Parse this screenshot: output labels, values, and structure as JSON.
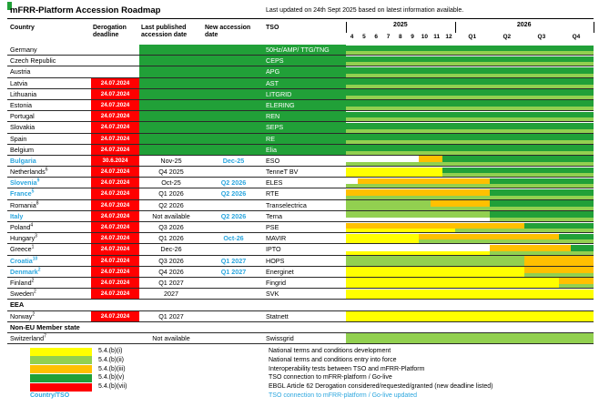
{
  "header": {
    "title": "mFRR-Platform Accession Roadmap",
    "updated": "Last updated on 24th Sept 2025 based on latest information available."
  },
  "columns": {
    "country": "Country",
    "derogation": "Derogation deadline",
    "last_published": "Last published accession date",
    "new_date": "New accession date",
    "tso": "TSO"
  },
  "colors": {
    "green": "#21A038",
    "lightgreen": "#92D050",
    "yellow": "#FFFF00",
    "orange": "#FFC000",
    "red": "#FF0000",
    "blue": "#2BA6DE",
    "white": "#FFFFFF"
  },
  "chart_data": {
    "type": "bar",
    "title": "mFRR-Platform Accession Roadmap",
    "x_axis": {
      "year_2025_months": [
        "4",
        "5",
        "6",
        "7",
        "8",
        "9",
        "10",
        "11",
        "12"
      ],
      "year_2026_quarters": [
        "Q1",
        "Q2",
        "Q3",
        "Q4"
      ],
      "labels": [
        "2025",
        "2026"
      ],
      "range_months_from_apr_2025": [
        0,
        21
      ]
    },
    "legend_position": "bottom",
    "rows": [
      {
        "type": "country",
        "name": "Germany",
        "sup": "",
        "blue": false,
        "deadline": "",
        "deadline_red": false,
        "published": "",
        "new_date": "",
        "new_blue": false,
        "tso": "50Hz/AMP/ TTG/TNG",
        "live": true,
        "upper": [
          [
            "green",
            0,
            21
          ]
        ],
        "lower": [
          [
            "lightgreen",
            0,
            21
          ]
        ]
      },
      {
        "type": "country",
        "name": "Czech Republic",
        "sup": "",
        "blue": false,
        "deadline": "",
        "deadline_red": false,
        "published": "",
        "new_date": "",
        "new_blue": false,
        "tso": "CEPS",
        "live": true,
        "upper": [
          [
            "green",
            0,
            21
          ]
        ],
        "lower": [
          [
            "lightgreen",
            0,
            21
          ]
        ]
      },
      {
        "type": "country",
        "name": "Austria",
        "sup": "",
        "blue": false,
        "deadline": "",
        "deadline_red": false,
        "published": "",
        "new_date": "",
        "new_blue": false,
        "tso": "APG",
        "live": true,
        "upper": [
          [
            "green",
            0,
            21
          ]
        ],
        "lower": [
          [
            "lightgreen",
            0,
            21
          ]
        ]
      },
      {
        "type": "country",
        "name": "Latvia",
        "sup": "",
        "blue": false,
        "deadline": "24.07.2024",
        "deadline_red": true,
        "published": "",
        "new_date": "",
        "new_blue": false,
        "tso": "AST",
        "live": true,
        "upper": [
          [
            "green",
            0,
            21
          ]
        ],
        "lower": [
          [
            "lightgreen",
            0,
            21
          ]
        ]
      },
      {
        "type": "country",
        "name": "Lithuania",
        "sup": "",
        "blue": false,
        "deadline": "24.07.2024",
        "deadline_red": true,
        "published": "",
        "new_date": "",
        "new_blue": false,
        "tso": "LITGRID",
        "live": true,
        "upper": [
          [
            "green",
            0,
            21
          ]
        ],
        "lower": [
          [
            "lightgreen",
            0,
            21
          ]
        ]
      },
      {
        "type": "country",
        "name": "Estonia",
        "sup": "",
        "blue": false,
        "deadline": "24.07.2024",
        "deadline_red": true,
        "published": "",
        "new_date": "",
        "new_blue": false,
        "tso": "ELERING",
        "live": true,
        "upper": [
          [
            "green",
            0,
            21
          ]
        ],
        "lower": [
          [
            "lightgreen",
            0,
            21
          ]
        ]
      },
      {
        "type": "country",
        "name": "Portugal",
        "sup": "",
        "blue": false,
        "deadline": "24.07.2024",
        "deadline_red": true,
        "published": "",
        "new_date": "",
        "new_blue": false,
        "tso": "REN",
        "live": true,
        "upper": [
          [
            "green",
            0,
            21
          ]
        ],
        "lower": [
          [
            "lightgreen",
            0,
            21
          ]
        ]
      },
      {
        "type": "country",
        "name": "Slovakia",
        "sup": "",
        "blue": false,
        "deadline": "24.07.2024",
        "deadline_red": true,
        "published": "",
        "new_date": "",
        "new_blue": false,
        "tso": "SEPS",
        "live": true,
        "upper": [
          [
            "green",
            0,
            21
          ]
        ],
        "lower": [
          [
            "lightgreen",
            0,
            21
          ]
        ]
      },
      {
        "type": "country",
        "name": "Spain",
        "sup": "",
        "blue": false,
        "deadline": "24.07.2024",
        "deadline_red": true,
        "published": "",
        "new_date": "",
        "new_blue": false,
        "tso": "RE",
        "live": true,
        "upper": [
          [
            "green",
            0,
            21
          ]
        ],
        "lower": [
          [
            "lightgreen",
            0,
            21
          ]
        ]
      },
      {
        "type": "country",
        "name": "Belgium",
        "sup": "",
        "blue": false,
        "deadline": "24.07.2024",
        "deadline_red": true,
        "published": "",
        "new_date": "",
        "new_blue": false,
        "tso": "Elia",
        "live": true,
        "upper": [
          [
            "green",
            0,
            21
          ]
        ],
        "lower": [
          [
            "lightgreen",
            0,
            21
          ]
        ]
      },
      {
        "type": "country",
        "name": "Bulgaria",
        "sup": "",
        "blue": true,
        "deadline": "30.6.2024",
        "deadline_red": true,
        "published": "Nov-25",
        "new_date": "Dec-25",
        "new_blue": true,
        "tso": "ESO",
        "live": false,
        "upper": [
          [
            "white",
            0,
            6
          ],
          [
            "orange",
            6,
            8
          ],
          [
            "green",
            8,
            21
          ]
        ],
        "lower": [
          [
            "lightgreen",
            0,
            21
          ]
        ]
      },
      {
        "type": "country",
        "name": "Netherlands",
        "sup": "6",
        "blue": false,
        "deadline": "24.07.2024",
        "deadline_red": true,
        "published": "Q4 2025",
        "new_date": "",
        "new_blue": false,
        "tso": "TenneT BV",
        "live": false,
        "upper": [
          [
            "yellow",
            0,
            8
          ],
          [
            "green",
            8,
            21
          ]
        ],
        "lower": [
          [
            "yellow",
            0,
            8
          ],
          [
            "lightgreen",
            8,
            21
          ]
        ]
      },
      {
        "type": "country",
        "name": "Slovenia",
        "sup": "9",
        "blue": true,
        "deadline": "24.07.2024",
        "deadline_red": true,
        "published": "Oct-25",
        "new_date": "Q2 2026",
        "new_blue": true,
        "tso": "ELES",
        "live": false,
        "upper": [
          [
            "white",
            0,
            1
          ],
          [
            "orange",
            1,
            12
          ],
          [
            "green",
            12,
            21
          ]
        ],
        "lower": [
          [
            "lightgreen",
            0,
            21
          ]
        ]
      },
      {
        "type": "country",
        "name": "France",
        "sup": "5",
        "blue": true,
        "deadline": "24.07.2024",
        "deadline_red": true,
        "published": "Q1 2026",
        "new_date": "Q2 2026",
        "new_blue": true,
        "tso": "RTE",
        "live": false,
        "upper": [
          [
            "orange",
            0,
            12
          ],
          [
            "green",
            12,
            21
          ]
        ],
        "lower": [
          [
            "lightgreen",
            0,
            21
          ]
        ]
      },
      {
        "type": "country",
        "name": "Romania",
        "sup": "8",
        "blue": false,
        "deadline": "24.07.2024",
        "deadline_red": true,
        "published": "Q2 2026",
        "new_date": "",
        "new_blue": false,
        "tso": "Transelectrica",
        "live": false,
        "upper": [
          [
            "lightgreen",
            0,
            7
          ],
          [
            "orange",
            7,
            12
          ],
          [
            "green",
            12,
            21
          ]
        ],
        "lower": [
          [
            "lightgreen",
            0,
            21
          ]
        ]
      },
      {
        "type": "country",
        "name": "Italy",
        "sup": "",
        "blue": true,
        "deadline": "24.07.2024",
        "deadline_red": true,
        "published": "Not available",
        "new_date": "Q2 2026",
        "new_blue": true,
        "tso": "Terna",
        "live": false,
        "upper": [
          [
            "lightgreen",
            0,
            12
          ],
          [
            "green",
            12,
            21
          ]
        ],
        "lower": [
          [
            "white",
            0,
            12
          ],
          [
            "lightgreen",
            12,
            21
          ]
        ]
      },
      {
        "type": "country",
        "name": "Poland",
        "sup": "4",
        "blue": false,
        "deadline": "24.07.2024",
        "deadline_red": true,
        "published": "Q3 2026",
        "new_date": "",
        "new_blue": false,
        "tso": "PSE",
        "live": false,
        "upper": [
          [
            "orange",
            0,
            15
          ],
          [
            "green",
            15,
            21
          ]
        ],
        "lower": [
          [
            "yellow",
            0,
            9
          ],
          [
            "lightgreen",
            9,
            21
          ]
        ]
      },
      {
        "type": "country",
        "name": "Hungary",
        "sup": "3",
        "blue": false,
        "deadline": "24.07.2024",
        "deadline_red": true,
        "published": "Q1 2026",
        "new_date": "Oct-26",
        "new_blue": true,
        "tso": "MAVIR",
        "live": false,
        "upper": [
          [
            "yellow",
            0,
            6
          ],
          [
            "orange",
            6,
            18
          ],
          [
            "green",
            18,
            21
          ]
        ],
        "lower": [
          [
            "yellow",
            0,
            6
          ],
          [
            "lightgreen",
            6,
            21
          ]
        ]
      },
      {
        "type": "country",
        "name": "Greece",
        "sup": "1",
        "blue": false,
        "deadline": "24.07.2024",
        "deadline_red": true,
        "published": "Dec-26",
        "new_date": "",
        "new_blue": false,
        "tso": "IPTO",
        "live": false,
        "upper": [
          [
            "white",
            0,
            12
          ],
          [
            "orange",
            12,
            19
          ],
          [
            "green",
            19,
            21
          ]
        ],
        "lower": [
          [
            "yellow",
            0,
            12
          ],
          [
            "lightgreen",
            12,
            21
          ]
        ]
      },
      {
        "type": "country",
        "name": "Croatia",
        "sup": "10",
        "blue": true,
        "deadline": "24.07.2024",
        "deadline_red": true,
        "published": "Q3 2026",
        "new_date": "Q1 2027",
        "new_blue": true,
        "tso": "HOPS",
        "live": false,
        "upper": [
          [
            "lightgreen",
            0,
            15
          ],
          [
            "orange",
            15,
            21
          ]
        ],
        "lower": [
          [
            "lightgreen",
            0,
            15
          ],
          [
            "orange",
            15,
            21
          ]
        ]
      },
      {
        "type": "country",
        "name": "Denmark",
        "sup": "2",
        "blue": true,
        "deadline": "24.07.2024",
        "deadline_red": true,
        "published": "Q4 2026",
        "new_date": "Q1 2027",
        "new_blue": true,
        "tso": "Energinet",
        "live": false,
        "upper": [
          [
            "yellow",
            0,
            15
          ],
          [
            "orange",
            15,
            21
          ]
        ],
        "lower": [
          [
            "yellow",
            0,
            15
          ],
          [
            "lightgreen",
            15,
            21
          ]
        ]
      },
      {
        "type": "country",
        "name": "Finland",
        "sup": "2",
        "blue": false,
        "deadline": "24.07.2024",
        "deadline_red": true,
        "published": "Q1 2027",
        "new_date": "",
        "new_blue": false,
        "tso": "Fingrid",
        "live": false,
        "upper": [
          [
            "yellow",
            0,
            18
          ],
          [
            "orange",
            18,
            21
          ]
        ],
        "lower": [
          [
            "yellow",
            0,
            18
          ],
          [
            "lightgreen",
            18,
            21
          ]
        ]
      },
      {
        "type": "country",
        "name": "Sweden",
        "sup": "2",
        "blue": false,
        "deadline": "24.07.2024",
        "deadline_red": true,
        "published": "2027",
        "new_date": "",
        "new_blue": false,
        "tso": "SVK",
        "live": false,
        "upper": [
          [
            "yellow",
            0,
            21
          ]
        ],
        "lower": [
          [
            "yellow",
            0,
            21
          ]
        ]
      },
      {
        "type": "section",
        "label": "EEA"
      },
      {
        "type": "country",
        "name": "Norway",
        "sup": "2",
        "blue": false,
        "deadline": "24.07.2024",
        "deadline_red": true,
        "published": "Q1 2027",
        "new_date": "",
        "new_blue": false,
        "tso": "Statnett",
        "live": false,
        "upper": [
          [
            "yellow",
            0,
            21
          ]
        ],
        "lower": [
          [
            "yellow",
            0,
            21
          ]
        ]
      },
      {
        "type": "section",
        "label": "Non-EU Member state"
      },
      {
        "type": "country",
        "name": "Switzerland",
        "sup": "7",
        "blue": false,
        "deadline": "",
        "deadline_red": false,
        "published": "Not available",
        "new_date": "",
        "new_blue": false,
        "tso": "Swissgrid",
        "live": false,
        "upper": [
          [
            "lightgreen",
            0,
            21
          ]
        ],
        "lower": [
          [
            "lightgreen",
            0,
            21
          ]
        ]
      }
    ]
  },
  "legend": {
    "items": [
      {
        "color": "yellow",
        "code": "5.4.(b)(i)",
        "desc": "National terms and conditions development"
      },
      {
        "color": "lightgreen",
        "code": "5.4.(b)(ii)",
        "desc": "National terms and conditions entry into force"
      },
      {
        "color": "orange",
        "code": "5.4.(b)(iii)",
        "desc": "Interoperability tests between TSO and mFRR-Platform"
      },
      {
        "color": "green",
        "code": "5.4.(b)(v)",
        "desc": "TSO connection to mFRR-platform / Go-live"
      },
      {
        "color": "red",
        "code": "5.4.(b)(vii)",
        "desc": "EBGL Article 62 Derogation considered/requested/granted (new deadline listed)"
      }
    ],
    "country_tso_label": "Country/TSO",
    "updated_desc": "TSO connection to mFRR-platform / Go-live updated"
  }
}
